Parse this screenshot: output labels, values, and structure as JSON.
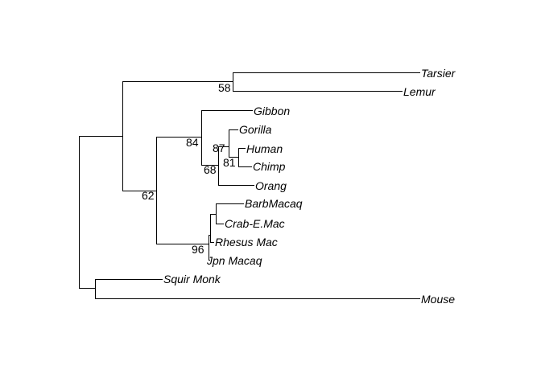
{
  "tree": {
    "tips": [
      {
        "id": "tarsier",
        "label": "Tarsier"
      },
      {
        "id": "lemur",
        "label": "Lemur"
      },
      {
        "id": "gibbon",
        "label": "Gibbon"
      },
      {
        "id": "gorilla",
        "label": "Gorilla"
      },
      {
        "id": "human",
        "label": "Human"
      },
      {
        "id": "chimp",
        "label": "Chimp"
      },
      {
        "id": "orang",
        "label": "Orang"
      },
      {
        "id": "barbmacaq",
        "label": "BarbMacaq"
      },
      {
        "id": "crab-e-mac",
        "label": "Crab-E.Mac"
      },
      {
        "id": "rhesus-mac",
        "label": "Rhesus Mac"
      },
      {
        "id": "jpn-macaq",
        "label": "Jpn Macaq"
      },
      {
        "id": "squir-monk",
        "label": "Squir Monk"
      },
      {
        "id": "mouse",
        "label": "Mouse"
      }
    ],
    "support_values": [
      {
        "node": "tarsier-lemur",
        "value": "58"
      },
      {
        "node": "hominoidea",
        "value": "84"
      },
      {
        "node": "gorilla-human-chimp",
        "value": "87"
      },
      {
        "node": "human-chimp",
        "value": "81"
      },
      {
        "node": "great-apes",
        "value": "68"
      },
      {
        "node": "catarrhini",
        "value": "62"
      },
      {
        "node": "macaques",
        "value": "96"
      }
    ]
  }
}
